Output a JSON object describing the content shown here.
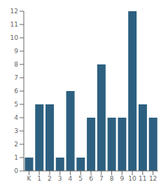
{
  "chart_data": {
    "type": "bar",
    "categories": [
      "K",
      "1",
      "2",
      "3",
      "4",
      "5",
      "6",
      "7",
      "8",
      "9",
      "10",
      "11",
      "12"
    ],
    "values": [
      1,
      5,
      5,
      1,
      6,
      1,
      4,
      8,
      4,
      4,
      12,
      5,
      4
    ],
    "color": "#2d6080",
    "ylim": [
      0,
      12
    ],
    "yticks": [
      0,
      1,
      2,
      3,
      4,
      5,
      6,
      7,
      8,
      9,
      10,
      11,
      12
    ],
    "grid": false
  }
}
